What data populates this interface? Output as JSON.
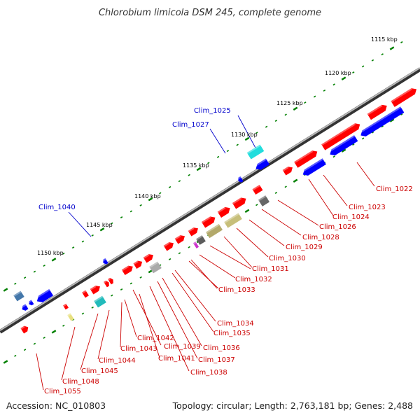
{
  "title": "Chlorobium limicola DSM 245, complete genome",
  "footer": {
    "accession": "Accession: NC_010803",
    "summary": "Topology: circular; Length: 2,763,181 bp; Genes: 2,488"
  },
  "colors": {
    "forward_gene": "#ff0000",
    "reverse_gene": "#0000ff",
    "forward_label": "#cc0000",
    "reverse_label": "#0000cc",
    "backbone": "#555555",
    "tick": "#008000"
  },
  "scale_ticks": [
    "1115 kbp",
    "1120 kbp",
    "1125 kbp",
    "1130 kbp",
    "1135 kbp",
    "1140 kbp",
    "1145 kbp",
    "1150 kbp"
  ],
  "reverse_labels": [
    "Clim_1025",
    "Clim_1027",
    "Clim_1040"
  ],
  "forward_labels": [
    "Clim_1022",
    "Clim_1023",
    "Clim_1024",
    "Clim_1026",
    "Clim_1028",
    "Clim_1029",
    "Clim_1030",
    "Clim_1031",
    "Clim_1032",
    "Clim_1033",
    "Clim_1034",
    "Clim_1035",
    "Clim_1036",
    "Clim_1037",
    "Clim_1038",
    "Clim_1039",
    "Clim_1041",
    "Clim_1042",
    "Clim_1043",
    "Clim_1044",
    "Clim_1045",
    "Clim_1048",
    "Clim_1055"
  ]
}
